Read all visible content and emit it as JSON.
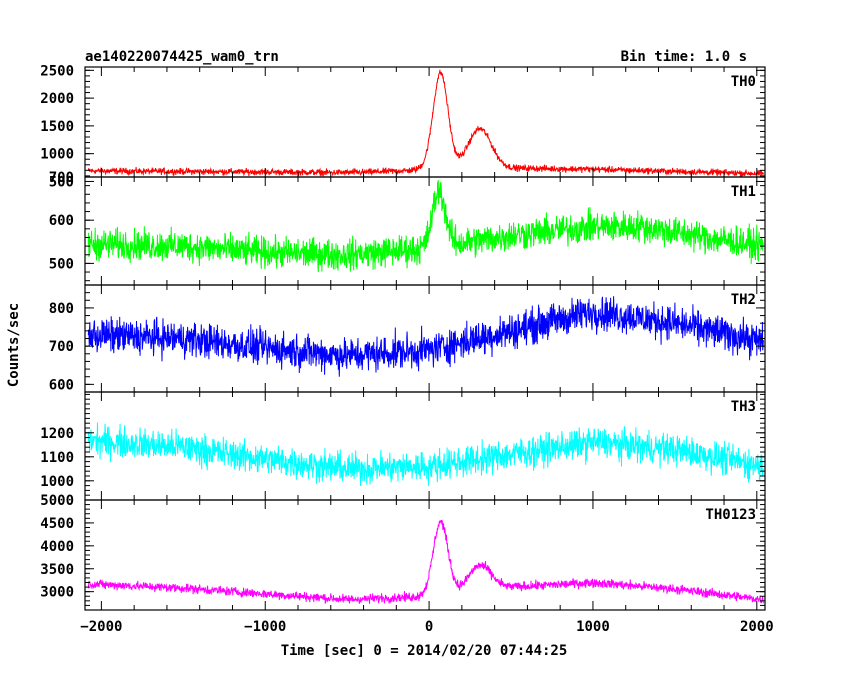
{
  "chart_data": {
    "type": "line",
    "title": "ae140220074425_wam0_trn",
    "bin_time_label": "Bin time: 1.0 s",
    "xlabel": "Time [sec] 0 = 2014/02/20 07:44:25",
    "ylabel": "Counts/sec",
    "x_range": [
      -2100,
      2050
    ],
    "x_ticks": [
      -2000,
      -1000,
      0,
      1000,
      2000
    ],
    "x_tick_labels": [
      "−2000",
      "−1000",
      "0",
      "1000",
      "2000"
    ],
    "panels": [
      {
        "name": "TH0",
        "color": "#ff0000",
        "ylim": [
          580,
          2560
        ],
        "y_ticks": [
          500,
          1000,
          1500,
          2000,
          2500
        ],
        "y_tick_labels": [
          "500",
          "1000",
          "1500",
          "2000",
          "2500"
        ],
        "baseline": [
          [
            -2100,
            690
          ],
          [
            -1500,
            680
          ],
          [
            -500,
            660
          ],
          [
            -250,
            680
          ],
          [
            -100,
            700
          ],
          [
            0,
            760
          ],
          [
            500,
            740
          ],
          [
            1000,
            720
          ],
          [
            1500,
            680
          ],
          [
            2050,
            640
          ]
        ],
        "bumps": [
          [
            70,
            1700,
            45
          ],
          [
            310,
            700,
            70
          ]
        ],
        "noise": 40
      },
      {
        "name": "TH1",
        "color": "#00ff00",
        "ylim": [
          450,
          700
        ],
        "y_ticks": [
          500,
          600,
          700
        ],
        "y_tick_labels": [
          "500",
          "600",
          "700"
        ],
        "baseline": [
          [
            -2100,
            545
          ],
          [
            -1500,
            540
          ],
          [
            -1000,
            525
          ],
          [
            -500,
            520
          ],
          [
            0,
            535
          ],
          [
            500,
            565
          ],
          [
            1000,
            585
          ],
          [
            1300,
            585
          ],
          [
            1700,
            560
          ],
          [
            2050,
            540
          ]
        ],
        "bumps": [
          [
            60,
            130,
            40
          ]
        ],
        "noise": 25
      },
      {
        "name": "TH2",
        "color": "#0000ff",
        "ylim": [
          580,
          860
        ],
        "y_ticks": [
          600,
          700,
          800
        ],
        "y_tick_labels": [
          "600",
          "700",
          "800"
        ],
        "baseline": [
          [
            -2100,
            730
          ],
          [
            -1500,
            720
          ],
          [
            -1000,
            695
          ],
          [
            -500,
            675
          ],
          [
            0,
            690
          ],
          [
            500,
            740
          ],
          [
            1000,
            790
          ],
          [
            1500,
            760
          ],
          [
            2050,
            710
          ]
        ],
        "bumps": [],
        "noise": 32
      },
      {
        "name": "TH3",
        "color": "#00ffff",
        "ylim": [
          920,
          1370
        ],
        "y_ticks": [
          1000,
          1100,
          1200
        ],
        "y_tick_labels": [
          "1000",
          "1100",
          "1200"
        ],
        "baseline": [
          [
            -2100,
            1170
          ],
          [
            -1500,
            1140
          ],
          [
            -1000,
            1090
          ],
          [
            -500,
            1050
          ],
          [
            0,
            1060
          ],
          [
            500,
            1110
          ],
          [
            1000,
            1160
          ],
          [
            1500,
            1130
          ],
          [
            2050,
            1060
          ]
        ],
        "bumps": [],
        "noise": 45
      },
      {
        "name": "TH0123",
        "color": "#ff00ff",
        "ylim": [
          2600,
          5000
        ],
        "y_ticks": [
          3000,
          3500,
          4000,
          4500,
          5000
        ],
        "y_tick_labels": [
          "3000",
          "3500",
          "4000",
          "4500",
          "5000"
        ],
        "baseline": [
          [
            -2100,
            3170
          ],
          [
            -1500,
            3080
          ],
          [
            -1000,
            2950
          ],
          [
            -500,
            2830
          ],
          [
            0,
            2900
          ],
          [
            500,
            3100
          ],
          [
            1000,
            3200
          ],
          [
            1500,
            3060
          ],
          [
            2050,
            2820
          ]
        ],
        "bumps": [
          [
            70,
            1600,
            45
          ],
          [
            310,
            550,
            70
          ]
        ],
        "noise": 70
      }
    ]
  }
}
